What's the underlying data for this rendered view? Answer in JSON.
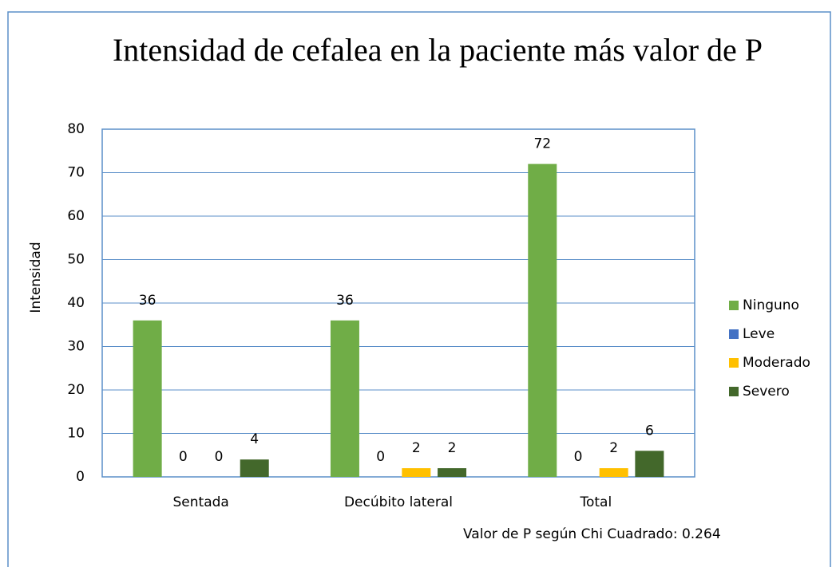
{
  "chart_data": {
    "type": "bar",
    "title": "Intensidad de cefalea en la paciente más valor de P",
    "y_label": "Intensidad",
    "annotation": "Valor de P según Chi Cuadrado: 0.264",
    "categories": [
      "Sentada",
      "Decúbito lateral",
      "Total"
    ],
    "series": [
      {
        "name": "Ninguno",
        "color": "#70ad47",
        "values": [
          36,
          36,
          72
        ]
      },
      {
        "name": "Leve",
        "color": "#4472c4",
        "values": [
          0,
          0,
          0
        ]
      },
      {
        "name": "Moderado",
        "color": "#ffc000",
        "values": [
          0,
          2,
          2
        ]
      },
      {
        "name": "Severo",
        "color": "#43682b",
        "values": [
          4,
          2,
          6
        ]
      }
    ],
    "ylim": [
      0,
      80
    ],
    "yticks": [
      0,
      10,
      20,
      30,
      40,
      50,
      60,
      70,
      80
    ],
    "grid": true,
    "legend": "right"
  }
}
